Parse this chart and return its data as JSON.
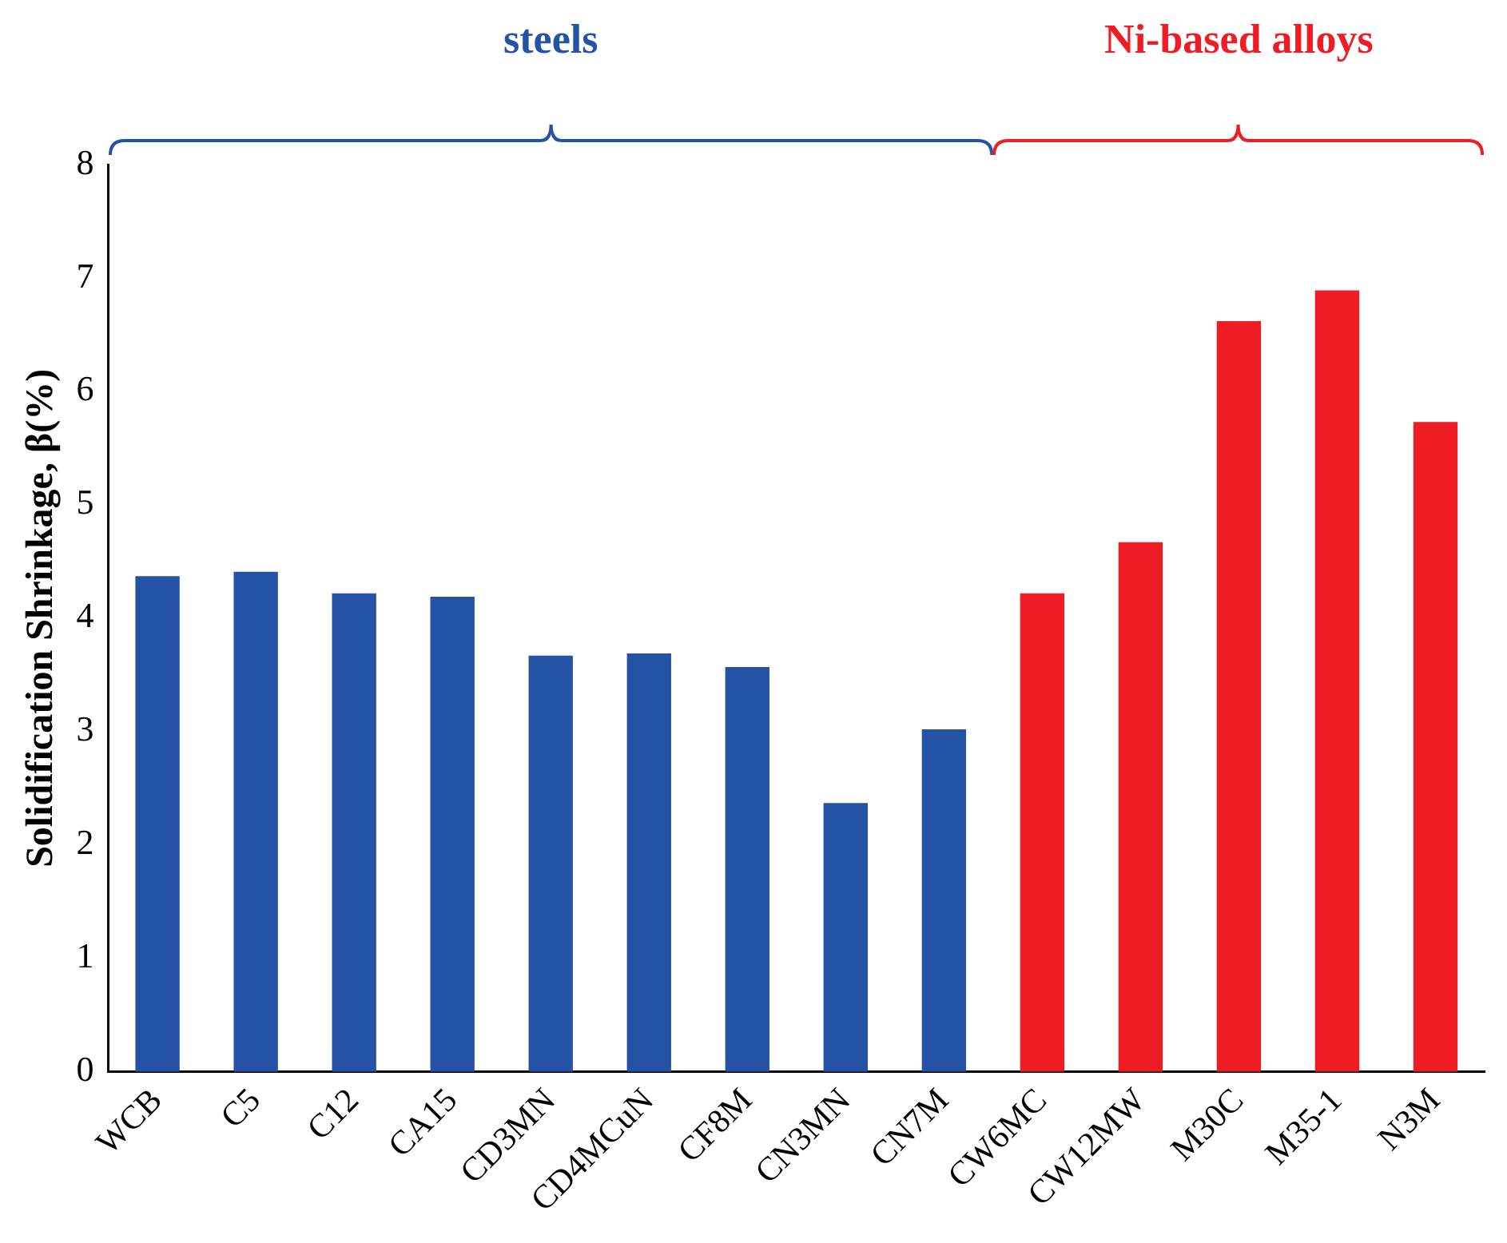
{
  "chart_data": {
    "type": "bar",
    "ylabel": "Solidification Shrinkage, β(%)",
    "categories": [
      "WCB",
      "C5",
      "C12",
      "CA15",
      "CD3MN",
      "CD4MCuN",
      "CF8M",
      "CN3MN",
      "CN7M",
      "CW6MC",
      "CW12MW",
      "M30C",
      "M35-1",
      "N3M"
    ],
    "values": [
      4.37,
      4.41,
      4.22,
      4.19,
      3.67,
      3.69,
      3.57,
      2.37,
      3.02,
      4.22,
      4.67,
      6.62,
      6.89,
      5.73
    ],
    "colors": [
      "#2452a4",
      "#2452a4",
      "#2452a4",
      "#2452a4",
      "#2452a4",
      "#2452a4",
      "#2452a4",
      "#2452a4",
      "#2452a4",
      "#ee1c25",
      "#ee1c25",
      "#ee1c25",
      "#ee1c25",
      "#ee1c25"
    ],
    "ylim": [
      0,
      8
    ],
    "yticks": [
      0,
      1,
      2,
      3,
      4,
      5,
      6,
      7,
      8
    ],
    "annotations": [
      "steels",
      "Ni-based alloys"
    ],
    "grid": false,
    "legend": false
  }
}
